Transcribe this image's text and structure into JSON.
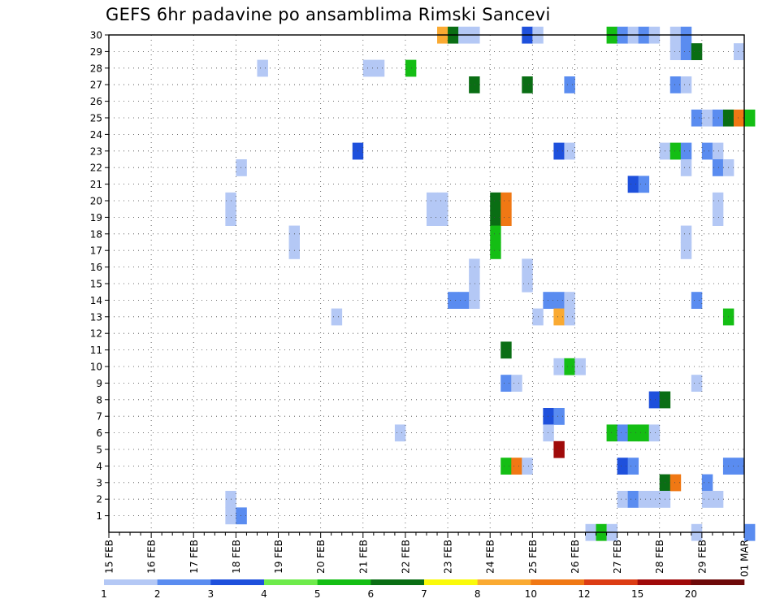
{
  "chart_data": {
    "type": "heatmap",
    "title": "GEFS 6hr padavine po ansamblima Rimski Sancevi",
    "x_tick_labels": [
      "15 FEB",
      "16 FEB",
      "17 FEB",
      "18 FEB",
      "19 FEB",
      "20 FEB",
      "21 FEB",
      "22 FEB",
      "23 FEB",
      "24 FEB",
      "25 FEB",
      "26 FEB",
      "27 FEB",
      "28 FEB",
      "29 FEB",
      "01 MAR"
    ],
    "x_range_days": [
      0,
      15
    ],
    "x_step_days": 0.25,
    "y_range": [
      0,
      30
    ],
    "y_ticks": [
      1,
      2,
      3,
      4,
      5,
      6,
      7,
      8,
      9,
      10,
      11,
      12,
      13,
      14,
      15,
      16,
      17,
      18,
      19,
      20,
      21,
      22,
      23,
      24,
      25,
      26,
      27,
      28,
      29,
      30
    ],
    "grid": true,
    "legend_position": "bottom",
    "legend": {
      "labels": [
        "1",
        "2",
        "3",
        "4",
        "5",
        "6",
        "7",
        "8",
        "10",
        "12",
        "15",
        "20"
      ],
      "colors": [
        "#b4c8f5",
        "#5a8cf0",
        "#1e50dc",
        "#6eeb4b",
        "#14be14",
        "#0a6e14",
        "#fafa0a",
        "#faaa32",
        "#f07814",
        "#dc3c14",
        "#a00a0a",
        "#6e0a0a"
      ]
    },
    "cells": [
      [
        30,
        7.75,
        8
      ],
      [
        30,
        8.0,
        6
      ],
      [
        30,
        8.25,
        1
      ],
      [
        30,
        8.5,
        1
      ],
      [
        30,
        9.75,
        3
      ],
      [
        30,
        10.0,
        1
      ],
      [
        30,
        11.75,
        5
      ],
      [
        30,
        12.0,
        2
      ],
      [
        30,
        12.25,
        1
      ],
      [
        30,
        12.5,
        2
      ],
      [
        30,
        12.75,
        1
      ],
      [
        30,
        13.25,
        1
      ],
      [
        30,
        13.5,
        2
      ],
      [
        29,
        13.25,
        1
      ],
      [
        29,
        13.5,
        2
      ],
      [
        29,
        13.75,
        6
      ],
      [
        29,
        14.75,
        1
      ],
      [
        28,
        3.5,
        1
      ],
      [
        28,
        6.0,
        1
      ],
      [
        28,
        6.25,
        1
      ],
      [
        28,
        7.0,
        5
      ],
      [
        27,
        8.5,
        6
      ],
      [
        27,
        9.75,
        6
      ],
      [
        27,
        10.75,
        2
      ],
      [
        27,
        13.25,
        2
      ],
      [
        27,
        13.5,
        1
      ],
      [
        25,
        13.75,
        2
      ],
      [
        25,
        14.0,
        1
      ],
      [
        25,
        14.25,
        2
      ],
      [
        25,
        14.5,
        6
      ],
      [
        25,
        14.75,
        10
      ],
      [
        25,
        15.0,
        5
      ],
      [
        23,
        5.75,
        3
      ],
      [
        23,
        10.5,
        3
      ],
      [
        23,
        10.75,
        1
      ],
      [
        23,
        13.0,
        1
      ],
      [
        23,
        13.25,
        5
      ],
      [
        23,
        13.5,
        2
      ],
      [
        23,
        14.0,
        2
      ],
      [
        23,
        14.25,
        1
      ],
      [
        22,
        3.0,
        1
      ],
      [
        22,
        13.5,
        1
      ],
      [
        22,
        14.25,
        2
      ],
      [
        22,
        14.5,
        1
      ],
      [
        21,
        12.25,
        3
      ],
      [
        21,
        12.5,
        2
      ],
      [
        20,
        2.75,
        1
      ],
      [
        20,
        7.5,
        1
      ],
      [
        20,
        7.75,
        1
      ],
      [
        20,
        9.0,
        6
      ],
      [
        20,
        9.25,
        10
      ],
      [
        20,
        14.25,
        1
      ],
      [
        19,
        2.75,
        1
      ],
      [
        19,
        7.5,
        1
      ],
      [
        19,
        7.75,
        1
      ],
      [
        19,
        9.0,
        6
      ],
      [
        19,
        9.25,
        10
      ],
      [
        19,
        14.25,
        1
      ],
      [
        18,
        4.25,
        1
      ],
      [
        18,
        9.0,
        5
      ],
      [
        18,
        13.5,
        1
      ],
      [
        17,
        4.25,
        1
      ],
      [
        17,
        9.0,
        5
      ],
      [
        17,
        13.5,
        1
      ],
      [
        16,
        8.5,
        1
      ],
      [
        16,
        9.75,
        1
      ],
      [
        15,
        8.5,
        1
      ],
      [
        15,
        9.75,
        1
      ],
      [
        14,
        8.0,
        2
      ],
      [
        14,
        8.25,
        2
      ],
      [
        14,
        8.5,
        1
      ],
      [
        14,
        10.25,
        2
      ],
      [
        14,
        10.5,
        2
      ],
      [
        14,
        10.75,
        1
      ],
      [
        14,
        13.75,
        2
      ],
      [
        13,
        5.25,
        1
      ],
      [
        13,
        10.0,
        1
      ],
      [
        13,
        10.5,
        8
      ],
      [
        13,
        10.75,
        1
      ],
      [
        13,
        14.5,
        5
      ],
      [
        11,
        9.25,
        6
      ],
      [
        10,
        10.5,
        1
      ],
      [
        10,
        10.75,
        5
      ],
      [
        10,
        11.0,
        1
      ],
      [
        9,
        9.25,
        2
      ],
      [
        9,
        9.5,
        1
      ],
      [
        9,
        13.75,
        1
      ],
      [
        8,
        12.75,
        3
      ],
      [
        8,
        13.0,
        6
      ],
      [
        7,
        10.25,
        3
      ],
      [
        7,
        10.5,
        2
      ],
      [
        6,
        6.75,
        1
      ],
      [
        6,
        10.25,
        1
      ],
      [
        6,
        11.75,
        5
      ],
      [
        6,
        12.0,
        2
      ],
      [
        6,
        12.25,
        5
      ],
      [
        6,
        12.5,
        5
      ],
      [
        6,
        12.75,
        1
      ],
      [
        5,
        10.5,
        15
      ],
      [
        4,
        9.25,
        5
      ],
      [
        4,
        9.5,
        10
      ],
      [
        4,
        9.75,
        1
      ],
      [
        4,
        12.0,
        3
      ],
      [
        4,
        12.25,
        2
      ],
      [
        4,
        14.5,
        2
      ],
      [
        4,
        14.75,
        2
      ],
      [
        3,
        13.0,
        6
      ],
      [
        3,
        13.25,
        10
      ],
      [
        3,
        14.0,
        2
      ],
      [
        2,
        2.75,
        1
      ],
      [
        2,
        12.0,
        1
      ],
      [
        2,
        12.25,
        2
      ],
      [
        2,
        12.5,
        1
      ],
      [
        2,
        12.75,
        1
      ],
      [
        2,
        13.0,
        1
      ],
      [
        2,
        14.0,
        1
      ],
      [
        2,
        14.25,
        1
      ],
      [
        1,
        2.75,
        1
      ],
      [
        1,
        3.0,
        2
      ],
      [
        0,
        11.25,
        1
      ],
      [
        0,
        11.5,
        5
      ],
      [
        0,
        11.75,
        1
      ],
      [
        0,
        13.75,
        1
      ],
      [
        0,
        15.0,
        2
      ]
    ]
  }
}
